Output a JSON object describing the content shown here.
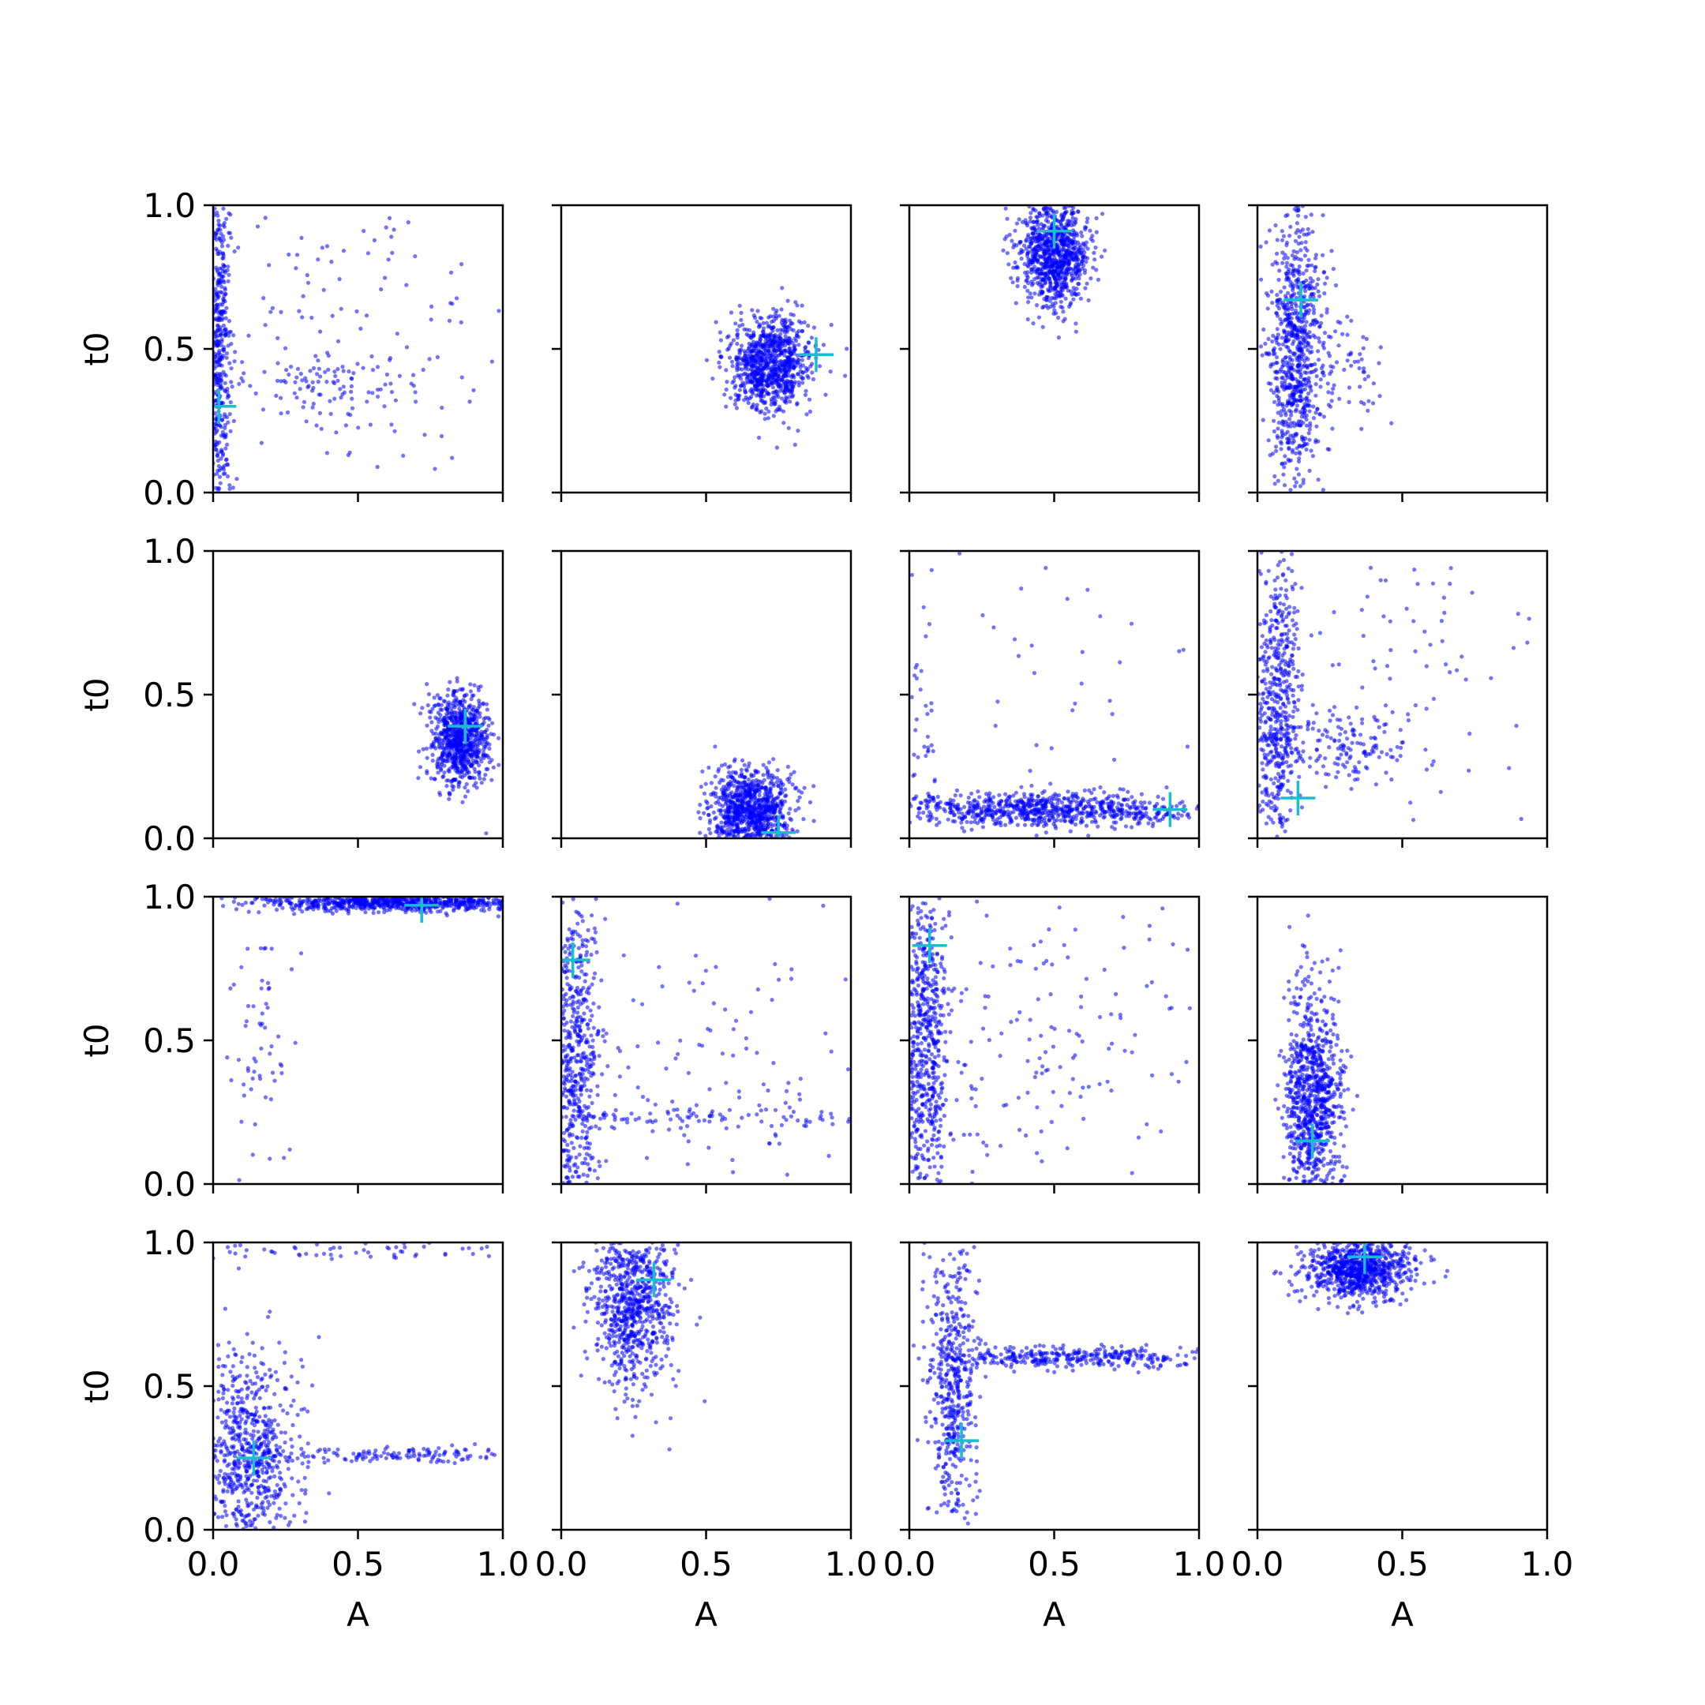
{
  "figure": {
    "rows": 4,
    "cols": 4,
    "xlabel": "A",
    "ylabel": "t0",
    "xlim": [
      0,
      1
    ],
    "ylim": [
      0,
      1
    ],
    "xticks": [
      "0.0",
      "0.5",
      "1.0"
    ],
    "yticks": [
      "0.0",
      "0.5",
      "1.0"
    ],
    "point_color": "#0000ff",
    "marker_color": "#17becf",
    "grid": false
  },
  "chart_data": [
    {
      "type": "scatter",
      "row": 0,
      "col": 0,
      "xlabel": "",
      "ylabel": "t0",
      "marker": {
        "x": 0.02,
        "y": 0.3
      },
      "clusters": [
        {
          "cx": 0.02,
          "cy": 0.5,
          "sx": 0.02,
          "sy": 0.3,
          "n": 500
        },
        {
          "cx": 0.35,
          "cy": 0.4,
          "sx": 0.15,
          "sy": 0.05,
          "n": 80
        },
        {
          "cx": 0.5,
          "cy": 0.55,
          "sx": 0.3,
          "sy": 0.3,
          "n": 140
        }
      ]
    },
    {
      "type": "scatter",
      "row": 0,
      "col": 1,
      "xlabel": "",
      "ylabel": "",
      "marker": {
        "x": 0.88,
        "y": 0.48
      },
      "clusters": [
        {
          "cx": 0.72,
          "cy": 0.45,
          "sx": 0.07,
          "sy": 0.08,
          "n": 900
        }
      ]
    },
    {
      "type": "scatter",
      "row": 0,
      "col": 2,
      "xlabel": "",
      "ylabel": "",
      "marker": {
        "x": 0.5,
        "y": 0.91
      },
      "clusters": [
        {
          "cx": 0.5,
          "cy": 0.83,
          "sx": 0.06,
          "sy": 0.09,
          "n": 900
        }
      ]
    },
    {
      "type": "scatter",
      "row": 0,
      "col": 3,
      "xlabel": "",
      "ylabel": "",
      "marker": {
        "x": 0.15,
        "y": 0.67
      },
      "clusters": [
        {
          "cx": 0.13,
          "cy": 0.5,
          "sx": 0.05,
          "sy": 0.25,
          "n": 800
        },
        {
          "cx": 0.3,
          "cy": 0.45,
          "sx": 0.08,
          "sy": 0.1,
          "n": 60
        }
      ]
    },
    {
      "type": "scatter",
      "row": 1,
      "col": 0,
      "xlabel": "",
      "ylabel": "t0",
      "marker": {
        "x": 0.87,
        "y": 0.39
      },
      "clusters": [
        {
          "cx": 0.85,
          "cy": 0.35,
          "sx": 0.05,
          "sy": 0.08,
          "n": 800
        }
      ]
    },
    {
      "type": "scatter",
      "row": 1,
      "col": 1,
      "xlabel": "",
      "ylabel": "",
      "marker": {
        "x": 0.75,
        "y": 0.02
      },
      "clusters": [
        {
          "cx": 0.65,
          "cy": 0.1,
          "sx": 0.07,
          "sy": 0.07,
          "n": 900
        }
      ]
    },
    {
      "type": "scatter",
      "row": 1,
      "col": 2,
      "xlabel": "",
      "ylabel": "",
      "marker": {
        "x": 0.9,
        "y": 0.1
      },
      "clusters": [
        {
          "cx": 0.45,
          "cy": 0.1,
          "sx": 0.28,
          "sy": 0.03,
          "n": 800
        },
        {
          "cx": 0.05,
          "cy": 0.45,
          "sx": 0.03,
          "sy": 0.25,
          "n": 40
        },
        {
          "cx": 0.5,
          "cy": 0.6,
          "sx": 0.3,
          "sy": 0.25,
          "n": 40
        }
      ]
    },
    {
      "type": "scatter",
      "row": 1,
      "col": 3,
      "xlabel": "",
      "ylabel": "",
      "marker": {
        "x": 0.14,
        "y": 0.14
      },
      "clusters": [
        {
          "cx": 0.07,
          "cy": 0.45,
          "sx": 0.04,
          "sy": 0.28,
          "n": 550
        },
        {
          "cx": 0.3,
          "cy": 0.32,
          "sx": 0.12,
          "sy": 0.06,
          "n": 150
        },
        {
          "cx": 0.55,
          "cy": 0.6,
          "sx": 0.25,
          "sy": 0.25,
          "n": 80
        }
      ]
    },
    {
      "type": "scatter",
      "row": 2,
      "col": 0,
      "xlabel": "",
      "ylabel": "t0",
      "marker": {
        "x": 0.72,
        "y": 0.97
      },
      "clusters": [
        {
          "cx": 0.65,
          "cy": 0.98,
          "sx": 0.25,
          "sy": 0.015,
          "n": 800
        },
        {
          "cx": 0.15,
          "cy": 0.55,
          "sx": 0.06,
          "sy": 0.25,
          "n": 60
        }
      ]
    },
    {
      "type": "scatter",
      "row": 2,
      "col": 1,
      "xlabel": "",
      "ylabel": "",
      "marker": {
        "x": 0.04,
        "y": 0.78
      },
      "clusters": [
        {
          "cx": 0.05,
          "cy": 0.4,
          "sx": 0.04,
          "sy": 0.3,
          "n": 600
        },
        {
          "cx": 0.5,
          "cy": 0.23,
          "sx": 0.3,
          "sy": 0.02,
          "n": 100
        },
        {
          "cx": 0.5,
          "cy": 0.45,
          "sx": 0.3,
          "sy": 0.3,
          "n": 120
        }
      ]
    },
    {
      "type": "scatter",
      "row": 2,
      "col": 2,
      "xlabel": "",
      "ylabel": "",
      "marker": {
        "x": 0.07,
        "y": 0.83
      },
      "clusters": [
        {
          "cx": 0.05,
          "cy": 0.5,
          "sx": 0.04,
          "sy": 0.3,
          "n": 650
        },
        {
          "cx": 0.5,
          "cy": 0.5,
          "sx": 0.3,
          "sy": 0.3,
          "n": 180
        }
      ]
    },
    {
      "type": "scatter",
      "row": 2,
      "col": 3,
      "xlabel": "",
      "ylabel": "",
      "marker": {
        "x": 0.19,
        "y": 0.15
      },
      "clusters": [
        {
          "cx": 0.19,
          "cy": 0.3,
          "sx": 0.05,
          "sy": 0.2,
          "n": 900
        }
      ]
    },
    {
      "type": "scatter",
      "row": 3,
      "col": 0,
      "xlabel": "A",
      "ylabel": "t0",
      "marker": {
        "x": 0.14,
        "y": 0.25
      },
      "clusters": [
        {
          "cx": 0.13,
          "cy": 0.25,
          "sx": 0.08,
          "sy": 0.18,
          "n": 700
        },
        {
          "cx": 0.65,
          "cy": 0.26,
          "sx": 0.3,
          "sy": 0.015,
          "n": 150
        },
        {
          "cx": 0.5,
          "cy": 0.97,
          "sx": 0.3,
          "sy": 0.015,
          "n": 60
        }
      ]
    },
    {
      "type": "scatter",
      "row": 3,
      "col": 1,
      "xlabel": "A",
      "ylabel": "",
      "marker": {
        "x": 0.32,
        "y": 0.87
      },
      "clusters": [
        {
          "cx": 0.25,
          "cy": 0.78,
          "sx": 0.07,
          "sy": 0.15,
          "n": 800
        }
      ]
    },
    {
      "type": "scatter",
      "row": 3,
      "col": 2,
      "xlabel": "A",
      "ylabel": "",
      "marker": {
        "x": 0.18,
        "y": 0.31
      },
      "clusters": [
        {
          "cx": 0.15,
          "cy": 0.5,
          "sx": 0.04,
          "sy": 0.28,
          "n": 500
        },
        {
          "cx": 0.55,
          "cy": 0.6,
          "sx": 0.25,
          "sy": 0.02,
          "n": 350
        }
      ]
    },
    {
      "type": "scatter",
      "row": 3,
      "col": 3,
      "xlabel": "A",
      "ylabel": "",
      "marker": {
        "x": 0.37,
        "y": 0.95
      },
      "clusters": [
        {
          "cx": 0.35,
          "cy": 0.91,
          "sx": 0.09,
          "sy": 0.05,
          "n": 900
        }
      ]
    }
  ]
}
